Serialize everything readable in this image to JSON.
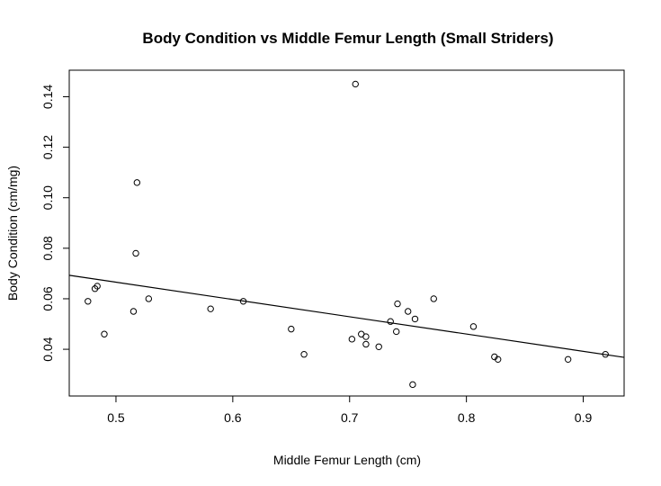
{
  "chart_data": {
    "type": "scatter",
    "title": "Body Condition vs Middle Femur Length (Small Striders)",
    "xlabel": "Middle Femur Length (cm)",
    "ylabel": "Body Condition (cm/mg)",
    "xlim": [
      0.46,
      0.935
    ],
    "ylim": [
      0.0215,
      0.1505
    ],
    "x_ticks": [
      0.5,
      0.6,
      0.7,
      0.8,
      0.9
    ],
    "x_tick_labels": [
      "0.5",
      "0.6",
      "0.7",
      "0.8",
      "0.9"
    ],
    "y_ticks": [
      0.04,
      0.06,
      0.08,
      0.1,
      0.12,
      0.14
    ],
    "y_tick_labels": [
      "0.04",
      "0.06",
      "0.08",
      "0.10",
      "0.12",
      "0.14"
    ],
    "grid": false,
    "points": [
      {
        "x": 0.705,
        "y": 0.145
      },
      {
        "x": 0.518,
        "y": 0.106
      },
      {
        "x": 0.517,
        "y": 0.078
      },
      {
        "x": 0.476,
        "y": 0.059
      },
      {
        "x": 0.482,
        "y": 0.064
      },
      {
        "x": 0.484,
        "y": 0.065
      },
      {
        "x": 0.49,
        "y": 0.046
      },
      {
        "x": 0.515,
        "y": 0.055
      },
      {
        "x": 0.528,
        "y": 0.06
      },
      {
        "x": 0.581,
        "y": 0.056
      },
      {
        "x": 0.609,
        "y": 0.059
      },
      {
        "x": 0.65,
        "y": 0.048
      },
      {
        "x": 0.661,
        "y": 0.038
      },
      {
        "x": 0.702,
        "y": 0.044
      },
      {
        "x": 0.71,
        "y": 0.046
      },
      {
        "x": 0.714,
        "y": 0.045
      },
      {
        "x": 0.714,
        "y": 0.042
      },
      {
        "x": 0.725,
        "y": 0.041
      },
      {
        "x": 0.735,
        "y": 0.051
      },
      {
        "x": 0.74,
        "y": 0.047
      },
      {
        "x": 0.741,
        "y": 0.058
      },
      {
        "x": 0.75,
        "y": 0.055
      },
      {
        "x": 0.754,
        "y": 0.026
      },
      {
        "x": 0.756,
        "y": 0.052
      },
      {
        "x": 0.772,
        "y": 0.06
      },
      {
        "x": 0.806,
        "y": 0.049
      },
      {
        "x": 0.824,
        "y": 0.037
      },
      {
        "x": 0.827,
        "y": 0.036
      },
      {
        "x": 0.887,
        "y": 0.036
      },
      {
        "x": 0.919,
        "y": 0.038
      }
    ],
    "fit_line": {
      "x": [
        0.46,
        0.935
      ],
      "y": [
        0.0693,
        0.0368
      ]
    }
  }
}
